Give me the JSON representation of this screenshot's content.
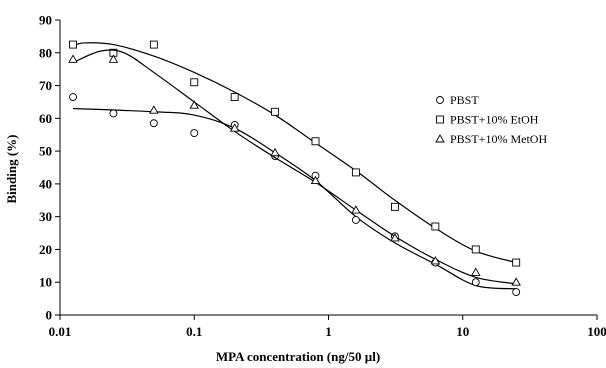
{
  "chart_data": {
    "type": "scatter",
    "xlabel": "MPA concentration (ng/50 µl)",
    "ylabel": "Binding (%)",
    "xscale": "log",
    "xlim": [
      0.01,
      100
    ],
    "ylim": [
      0,
      90
    ],
    "xticks": [
      {
        "value": 0.01,
        "label": "0.01"
      },
      {
        "value": 0.1,
        "label": "0.1"
      },
      {
        "value": 1,
        "label": "1"
      },
      {
        "value": 10,
        "label": "10"
      },
      {
        "value": 100,
        "label": "100"
      }
    ],
    "yticks": [
      {
        "value": 0,
        "label": "0"
      },
      {
        "value": 10,
        "label": "10"
      },
      {
        "value": 20,
        "label": "20"
      },
      {
        "value": 30,
        "label": "30"
      },
      {
        "value": 40,
        "label": "40"
      },
      {
        "value": 50,
        "label": "50"
      },
      {
        "value": 60,
        "label": "60"
      },
      {
        "value": 70,
        "label": "70"
      },
      {
        "value": 80,
        "label": "80"
      },
      {
        "value": 90,
        "label": "90"
      }
    ],
    "grid": false,
    "legend_position": "right",
    "series": [
      {
        "name": "PBST",
        "marker": "circle",
        "x": [
          0.0125,
          0.025,
          0.05,
          0.1,
          0.2,
          0.4,
          0.8,
          1.6,
          3.125,
          6.25,
          12.5,
          25
        ],
        "y": [
          66.5,
          61.5,
          58.5,
          55.5,
          58,
          48.5,
          42.5,
          29,
          24,
          16,
          10,
          7
        ],
        "fit": [
          [
            0.0125,
            63
          ],
          [
            0.05,
            62
          ],
          [
            0.1,
            61
          ],
          [
            0.2,
            57
          ],
          [
            0.4,
            49.5
          ],
          [
            0.8,
            41
          ],
          [
            1.6,
            30
          ],
          [
            3.125,
            22
          ],
          [
            6.25,
            15.5
          ],
          [
            12.5,
            9
          ],
          [
            25,
            8
          ]
        ]
      },
      {
        "name": "PBST+10% EtOH",
        "marker": "square",
        "x": [
          0.0125,
          0.025,
          0.05,
          0.1,
          0.2,
          0.4,
          0.8,
          1.6,
          3.125,
          6.25,
          12.5,
          25
        ],
        "y": [
          82.5,
          80,
          82.5,
          71,
          66.5,
          62,
          53,
          43.5,
          33,
          27,
          20,
          16
        ],
        "fit": [
          [
            0.0125,
            82
          ],
          [
            0.015,
            83
          ],
          [
            0.025,
            82.5
          ],
          [
            0.05,
            79
          ],
          [
            0.1,
            74
          ],
          [
            0.2,
            68
          ],
          [
            0.4,
            61
          ],
          [
            0.8,
            52.5
          ],
          [
            1.6,
            44
          ],
          [
            3.125,
            35
          ],
          [
            6.25,
            26.5
          ],
          [
            12.5,
            19.5
          ],
          [
            25,
            16
          ]
        ]
      },
      {
        "name": "PBST+10% MetOH",
        "marker": "triangle",
        "x": [
          0.0125,
          0.025,
          0.05,
          0.1,
          0.2,
          0.4,
          0.8,
          1.6,
          3.125,
          6.25,
          12.5,
          25
        ],
        "y": [
          78,
          78,
          62.5,
          64,
          57,
          49.5,
          41,
          32,
          23.5,
          16.5,
          13,
          10
        ],
        "fit": [
          [
            0.0125,
            77
          ],
          [
            0.02,
            80.5
          ],
          [
            0.03,
            80
          ],
          [
            0.05,
            74
          ],
          [
            0.1,
            65
          ],
          [
            0.2,
            56
          ],
          [
            0.4,
            48
          ],
          [
            0.8,
            40.5
          ],
          [
            1.6,
            32
          ],
          [
            3.125,
            24
          ],
          [
            6.25,
            17
          ],
          [
            12.5,
            11.5
          ],
          [
            25,
            9.5
          ]
        ]
      }
    ]
  }
}
